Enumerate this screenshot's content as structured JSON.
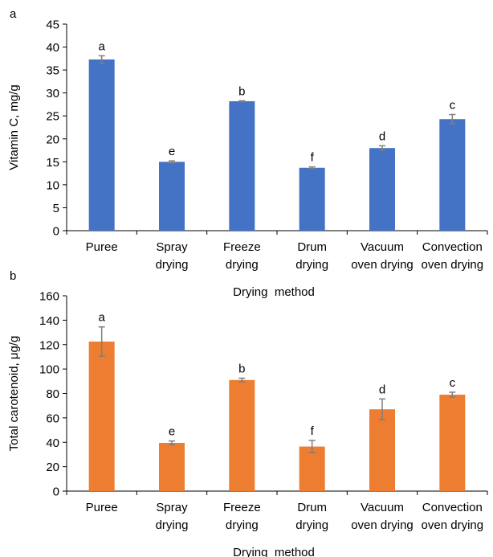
{
  "chart_data": [
    {
      "type": "bar",
      "panel_label": "a",
      "title": "",
      "categories": [
        [
          "Puree"
        ],
        [
          "Spray",
          "drying"
        ],
        [
          "Freeze",
          "drying"
        ],
        [
          "Drum",
          "drying"
        ],
        [
          "Vacuum",
          "oven drying"
        ],
        [
          "Convection",
          "oven drying"
        ]
      ],
      "values": [
        37.3,
        15.0,
        28.2,
        13.7,
        18.0,
        24.3
      ],
      "errors": [
        0.8,
        0.2,
        0.1,
        0.2,
        0.5,
        1.0
      ],
      "significance_letters": [
        "a",
        "e",
        "b",
        "f",
        "d",
        "c"
      ],
      "xlabel": "Drying  method",
      "ylabel": "Vitamin C, mg/g",
      "ylim": [
        0,
        45
      ],
      "yticks": [
        0,
        5,
        10,
        15,
        20,
        25,
        30,
        35,
        40,
        45
      ],
      "grid": false,
      "color": "#4472C4"
    },
    {
      "type": "bar",
      "panel_label": "b",
      "title": "",
      "categories": [
        [
          "Puree"
        ],
        [
          "Spray",
          "drying"
        ],
        [
          "Freeze",
          "drying"
        ],
        [
          "Drum",
          "drying"
        ],
        [
          "Vacuum",
          "oven drying"
        ],
        [
          "Convection",
          "oven drying"
        ]
      ],
      "values": [
        122.5,
        39.5,
        91.0,
        36.5,
        67.0,
        79.0
      ],
      "errors": [
        12.0,
        1.5,
        1.5,
        5.0,
        8.5,
        2.0
      ],
      "significance_letters": [
        "a",
        "e",
        "b",
        "f",
        "d",
        "c"
      ],
      "xlabel": "Drying  method",
      "ylabel": "Total carotenoid, μg/g",
      "ylim": [
        0,
        160
      ],
      "yticks": [
        0,
        20,
        40,
        60,
        80,
        100,
        120,
        140,
        160
      ],
      "grid": false,
      "color": "#ED7D31"
    }
  ]
}
